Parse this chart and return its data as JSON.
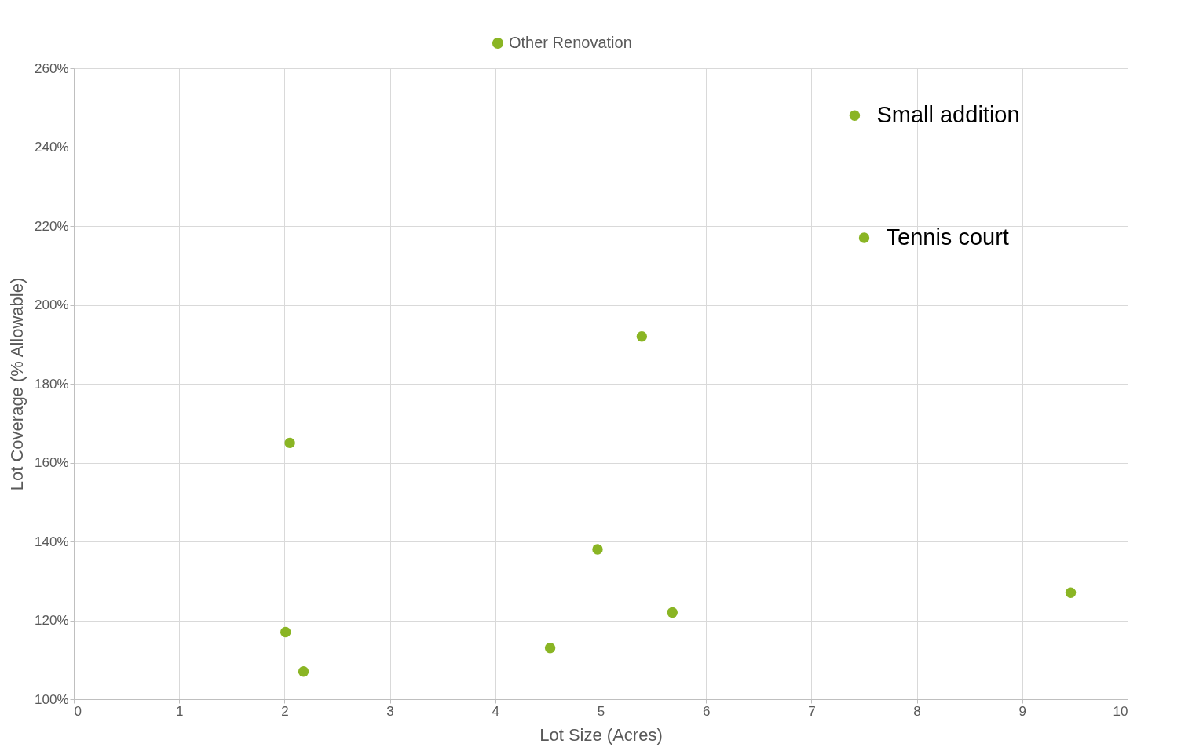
{
  "chart_data": {
    "type": "scatter",
    "xlabel": "Lot Size (Acres)",
    "ylabel": "Lot Coverage (% Allowable)",
    "series": [
      {
        "name": "Other Renovation",
        "color": "#8ab524",
        "x": [
          2.05,
          5.39,
          4.97,
          2.01,
          2.18,
          4.52,
          5.68,
          9.46,
          7.41,
          7.5
        ],
        "values": [
          165,
          192,
          138,
          117,
          107,
          113,
          122,
          127,
          248,
          217
        ]
      }
    ],
    "annotations": [
      {
        "text": "Small addition",
        "x": 7.41,
        "y": 248
      },
      {
        "text": "Tennis court",
        "x": 7.5,
        "y": 217
      }
    ],
    "xlim": [
      0,
      10
    ],
    "xticks": [
      0,
      1,
      2,
      3,
      4,
      5,
      6,
      7,
      8,
      9,
      10
    ],
    "ylim": [
      100,
      260
    ],
    "yticks": [
      {
        "value": 100,
        "label": "100%"
      },
      {
        "value": 120,
        "label": "120%"
      },
      {
        "value": 140,
        "label": "140%"
      },
      {
        "value": 160,
        "label": "160%"
      },
      {
        "value": 180,
        "label": "180%"
      },
      {
        "value": 200,
        "label": "200%"
      },
      {
        "value": 220,
        "label": "220%"
      },
      {
        "value": 240,
        "label": "240%"
      },
      {
        "value": 260,
        "label": "260%"
      }
    ],
    "grid": true,
    "legend": "top",
    "marker": "circle"
  }
}
